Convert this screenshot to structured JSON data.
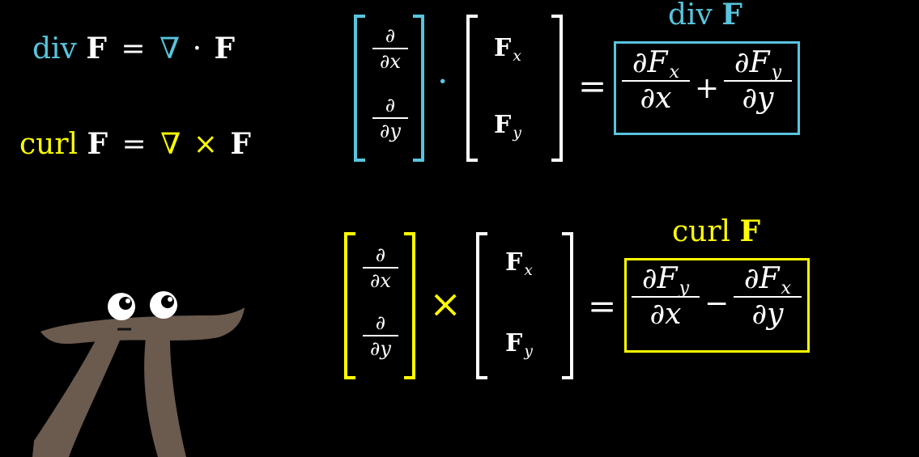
{
  "colors": {
    "div": "#58C4DD",
    "curl": "#FFFF00",
    "text": "#FFFFFF",
    "background": "#000000",
    "pi_body": "#6B5A4E"
  },
  "left_defs": {
    "div": {
      "word": "div",
      "F": "F",
      "eq": "=",
      "nabla": "∇",
      "op": "·",
      "F2": "F"
    },
    "curl": {
      "word": "curl",
      "F": "F",
      "eq": "=",
      "nabla": "∇",
      "op": "×",
      "F2": "F"
    }
  },
  "div_row": {
    "label_word": "div",
    "label_F": "F",
    "d_num": "∂",
    "dx": "∂x",
    "dy": "∂y",
    "dot": "·",
    "Fx_F": "F",
    "Fx_sub": "x",
    "Fy_F": "F",
    "Fy_sub": "y",
    "equals": "=",
    "term1_num_d": "∂F",
    "term1_num_sub": "x",
    "term1_den": "∂x",
    "plus": "+",
    "term2_num_d": "∂F",
    "term2_num_sub": "y",
    "term2_den": "∂y"
  },
  "curl_row": {
    "label_word": "curl",
    "label_F": "F",
    "d_num": "∂",
    "dx": "∂x",
    "dy": "∂y",
    "cross": "×",
    "Fx_F": "F",
    "Fx_sub": "x",
    "Fy_F": "F",
    "Fy_sub": "y",
    "equals": "=",
    "term1_num_d": "∂F",
    "term1_num_sub": "y",
    "term1_den": "∂x",
    "minus": "−",
    "term2_num_d": "∂F",
    "term2_num_sub": "x",
    "term2_den": "∂y"
  },
  "character": {
    "icon": "pi-creature-icon"
  }
}
